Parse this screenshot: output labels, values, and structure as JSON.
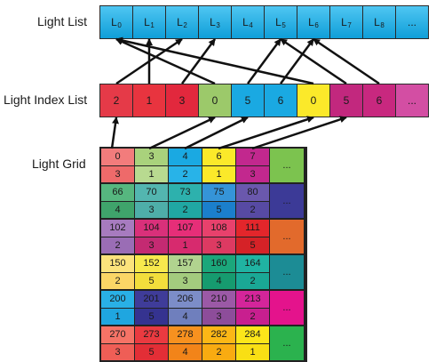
{
  "labels": {
    "light_list": "Light List",
    "light_index_list": "Light Index List",
    "light_grid": "Light Grid"
  },
  "light_list": [
    {
      "base": "L",
      "sub": "0"
    },
    {
      "base": "L",
      "sub": "1"
    },
    {
      "base": "L",
      "sub": "2"
    },
    {
      "base": "L",
      "sub": "3"
    },
    {
      "base": "L",
      "sub": "4"
    },
    {
      "base": "L",
      "sub": "5"
    },
    {
      "base": "L",
      "sub": "6"
    },
    {
      "base": "L",
      "sub": "7"
    },
    {
      "base": "L",
      "sub": "8"
    },
    {
      "base": "...",
      "sub": ""
    }
  ],
  "light_index_list": [
    {
      "value": "2",
      "color": "#e53a48"
    },
    {
      "value": "1",
      "color": "#e8343f"
    },
    {
      "value": "3",
      "color": "#e2283d"
    },
    {
      "value": "0",
      "color": "#9cc96a"
    },
    {
      "value": "5",
      "color": "#1aa9e2"
    },
    {
      "value": "6",
      "color": "#1aa9e2"
    },
    {
      "value": "0",
      "color": "#fbe92a"
    },
    {
      "value": "5",
      "color": "#c2287e"
    },
    {
      "value": "6",
      "color": "#c8287f"
    },
    {
      "value": "...",
      "color": "#d34ea3"
    }
  ],
  "light_grid": [
    [
      {
        "top": "0",
        "bottom": "3",
        "top_color": "#f27c7c",
        "bottom_color": "#ee6a6a"
      },
      {
        "top": "3",
        "bottom": "1",
        "top_color": "#a9d27c",
        "bottom_color": "#b8da90"
      },
      {
        "top": "4",
        "bottom": "2",
        "top_color": "#1aa9e2",
        "bottom_color": "#28b3e8"
      },
      {
        "top": "6",
        "bottom": "1",
        "top_color": "#fbe92a",
        "bottom_color": "#fbe92a"
      },
      {
        "top": "7",
        "bottom": "3",
        "top_color": "#c2288e",
        "bottom_color": "#c2288e"
      },
      {
        "top": "...",
        "bottom": "",
        "top_color": "#7cc34f",
        "bottom_color": "#7cc34f",
        "full": true
      }
    ],
    [
      {
        "top": "66",
        "bottom": "4",
        "top_color": "#56b77f",
        "bottom_color": "#3fa46b"
      },
      {
        "top": "70",
        "bottom": "3",
        "top_color": "#53b6b0",
        "bottom_color": "#4eaea9"
      },
      {
        "top": "73",
        "bottom": "2",
        "top_color": "#2db1ad",
        "bottom_color": "#20a7a3"
      },
      {
        "top": "75",
        "bottom": "5",
        "top_color": "#3594d8",
        "bottom_color": "#1b7fcc"
      },
      {
        "top": "80",
        "bottom": "2",
        "top_color": "#6a58ad",
        "bottom_color": "#574aa3"
      },
      {
        "top": "...",
        "bottom": "",
        "top_color": "#3c3a97",
        "bottom_color": "#3c3a97",
        "full": true
      }
    ],
    [
      {
        "top": "102",
        "bottom": "2",
        "top_color": "#a77bbf",
        "bottom_color": "#9a6db5"
      },
      {
        "top": "104",
        "bottom": "3",
        "top_color": "#d9307a",
        "bottom_color": "#c42a72"
      },
      {
        "top": "107",
        "bottom": "1",
        "top_color": "#e62e78",
        "bottom_color": "#d72a6e"
      },
      {
        "top": "108",
        "bottom": "3",
        "top_color": "#e8416c",
        "bottom_color": "#dd3a62"
      },
      {
        "top": "111",
        "bottom": "5",
        "top_color": "#e3262b",
        "bottom_color": "#d52227"
      },
      {
        "top": "...",
        "bottom": "",
        "top_color": "#e26a2c",
        "bottom_color": "#e26a2c",
        "full": true
      }
    ],
    [
      {
        "top": "150",
        "bottom": "2",
        "top_color": "#fbe37c",
        "bottom_color": "#fbd666"
      },
      {
        "top": "152",
        "bottom": "5",
        "top_color": "#f7e94d",
        "bottom_color": "#f2de3c"
      },
      {
        "top": "157",
        "bottom": "3",
        "top_color": "#b1d38f",
        "bottom_color": "#a3cb7e"
      },
      {
        "top": "160",
        "bottom": "4",
        "top_color": "#1ba77b",
        "bottom_color": "#169b6f"
      },
      {
        "top": "164",
        "bottom": "2",
        "top_color": "#20b3a2",
        "bottom_color": "#1aa895"
      },
      {
        "top": "...",
        "bottom": "",
        "top_color": "#1c8c95",
        "bottom_color": "#1c8c95",
        "full": true
      }
    ],
    [
      {
        "top": "200",
        "bottom": "1",
        "top_color": "#29b0e6",
        "bottom_color": "#1fa6e0"
      },
      {
        "top": "201",
        "bottom": "5",
        "top_color": "#3f3c99",
        "bottom_color": "#353390"
      },
      {
        "top": "206",
        "bottom": "4",
        "top_color": "#7c8dc8",
        "bottom_color": "#6f7fbd"
      },
      {
        "top": "210",
        "bottom": "3",
        "top_color": "#9b59a6",
        "bottom_color": "#8d4d9a"
      },
      {
        "top": "213",
        "bottom": "2",
        "top_color": "#d4259a",
        "bottom_color": "#c81f8f"
      },
      {
        "top": "...",
        "bottom": "",
        "top_color": "#e4138c",
        "bottom_color": "#e4138c",
        "full": true
      }
    ],
    [
      {
        "top": "270",
        "bottom": "3",
        "top_color": "#f57366",
        "bottom_color": "#ef5e56"
      },
      {
        "top": "273",
        "bottom": "5",
        "top_color": "#ea3a40",
        "bottom_color": "#e32e36"
      },
      {
        "top": "278",
        "bottom": "4",
        "top_color": "#f7911f",
        "bottom_color": "#f28419"
      },
      {
        "top": "282",
        "bottom": "2",
        "top_color": "#fcb716",
        "bottom_color": "#f9ab11"
      },
      {
        "top": "284",
        "bottom": "1",
        "top_color": "#fce61a",
        "bottom_color": "#f9df14"
      },
      {
        "top": "...",
        "bottom": "",
        "top_color": "#2bb24e",
        "bottom_color": "#2bb24e",
        "full": true
      }
    ]
  ]
}
